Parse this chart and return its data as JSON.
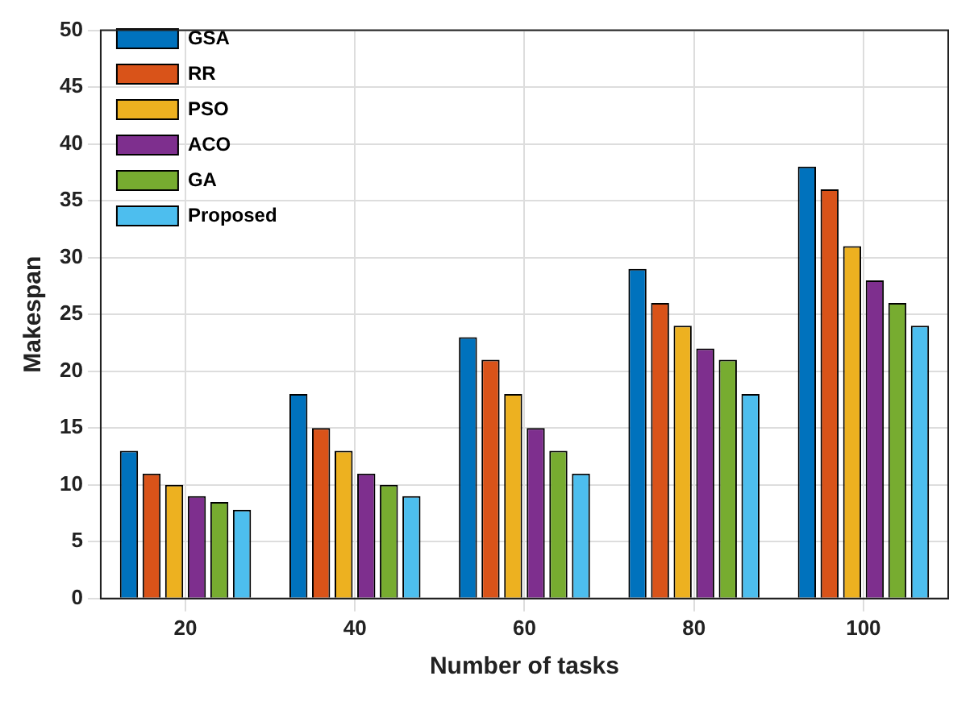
{
  "chart_data": {
    "type": "bar",
    "xlabel": "Number of tasks",
    "ylabel": "Makespan",
    "categories": [
      "20",
      "40",
      "60",
      "80",
      "100"
    ],
    "series": [
      {
        "name": "GSA",
        "color": "#0072bd",
        "values": [
          13,
          18,
          23,
          29,
          38
        ]
      },
      {
        "name": "RR",
        "color": "#d95319",
        "values": [
          11,
          15,
          21,
          26,
          36
        ]
      },
      {
        "name": "PSO",
        "color": "#edb120",
        "values": [
          10,
          13,
          18,
          24,
          31
        ]
      },
      {
        "name": "ACO",
        "color": "#7e2f8e",
        "values": [
          9,
          11,
          15,
          22,
          28
        ]
      },
      {
        "name": "GA",
        "color": "#77ac30",
        "values": [
          8.5,
          10,
          13,
          21,
          26
        ]
      },
      {
        "name": "Proposed",
        "color": "#4dbeee",
        "values": [
          7.8,
          9,
          11,
          18,
          24
        ]
      }
    ],
    "ylim": [
      0,
      50
    ],
    "yticks": [
      0,
      5,
      10,
      15,
      20,
      25,
      30,
      35,
      40,
      45,
      50
    ],
    "grid": true,
    "legend": "top left"
  }
}
